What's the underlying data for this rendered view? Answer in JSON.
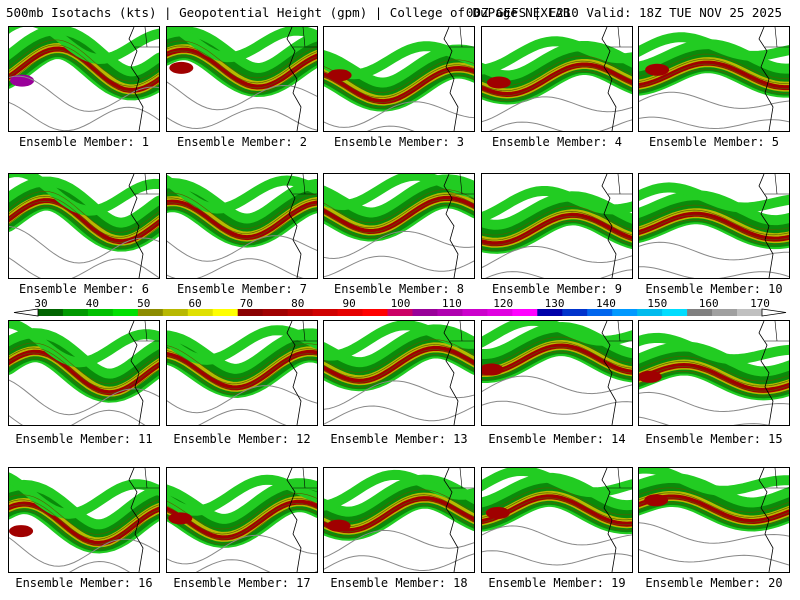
{
  "header": {
    "left": "500mb Isotachs (kts) | Geopotential Height (gpm) | College of DuPage NEXLAB",
    "right": "00Z GEFS | F210 Valid: 18Z TUE NOV 25 2025"
  },
  "panels": [
    {
      "label": "Ensemble Member: 1"
    },
    {
      "label": "Ensemble Member: 2"
    },
    {
      "label": "Ensemble Member: 3"
    },
    {
      "label": "Ensemble Member: 4"
    },
    {
      "label": "Ensemble Member: 5"
    },
    {
      "label": "Ensemble Member: 6"
    },
    {
      "label": "Ensemble Member: 7"
    },
    {
      "label": "Ensemble Member: 8"
    },
    {
      "label": "Ensemble Member: 9"
    },
    {
      "label": "Ensemble Member: 10"
    },
    {
      "label": "Ensemble Member: 11"
    },
    {
      "label": "Ensemble Member: 12"
    },
    {
      "label": "Ensemble Member: 13"
    },
    {
      "label": "Ensemble Member: 14"
    },
    {
      "label": "Ensemble Member: 15"
    },
    {
      "label": "Ensemble Member: 16"
    },
    {
      "label": "Ensemble Member: 17"
    },
    {
      "label": "Ensemble Member: 18"
    },
    {
      "label": "Ensemble Member: 19"
    },
    {
      "label": "Ensemble Member: 20"
    }
  ],
  "colorbar": {
    "ticks": [
      "30",
      "40",
      "50",
      "60",
      "70",
      "80",
      "90",
      "100",
      "110",
      "120",
      "130",
      "140",
      "150",
      "160",
      "170"
    ],
    "colors": [
      "#006400",
      "#009900",
      "#00c000",
      "#00e000",
      "#8c8c00",
      "#b8b800",
      "#e0e000",
      "#ffff00",
      "#8b0000",
      "#a00000",
      "#b80000",
      "#d00000",
      "#e60000",
      "#ff0000",
      "#cc0066",
      "#990099",
      "#b000b0",
      "#cc00cc",
      "#e000e0",
      "#ff00ff",
      "#0000aa",
      "#0033cc",
      "#0066ee",
      "#0099ff",
      "#00bbee",
      "#00ddff",
      "#808080",
      "#a0a0a0",
      "#c0c0c0"
    ]
  },
  "palette": {
    "jet_light": "#22cc22",
    "jet_dark": "#0a8a0a",
    "jet_core": "#b8b800",
    "jet_max": "#a00000",
    "jet_peak": "#990099",
    "height_contour": "#888888",
    "border": "#000000"
  }
}
